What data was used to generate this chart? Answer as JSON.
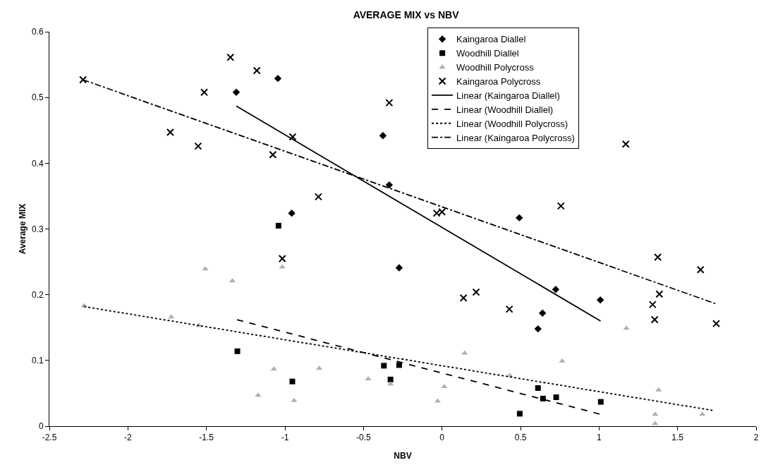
{
  "chart_data": {
    "type": "scatter",
    "title": "AVERAGE MIX vs NBV",
    "xlabel": "NBV",
    "ylabel": "Average MIX",
    "xlim": [
      -2.5,
      2
    ],
    "xticks": [
      -2.5,
      -2,
      -1.5,
      -1,
      -0.5,
      0,
      0.5,
      1,
      1.5,
      2
    ],
    "ylim": [
      0,
      0.6
    ],
    "yticks": [
      0,
      0.1,
      0.2,
      0.3,
      0.4,
      0.5,
      0.6
    ],
    "grid": false,
    "legend": "top",
    "series": [
      {
        "name": "Kaingaroa Diallel",
        "marker": "diamond",
        "color": "#000000",
        "x": [
          -1.31,
          -1.045,
          -0.376,
          -0.336,
          -0.957,
          -0.273,
          0.724,
          1.008,
          0.64,
          0.611,
          0.492
        ],
        "values": [
          0.508,
          0.529,
          0.442,
          0.367,
          0.324,
          0.241,
          0.208,
          0.192,
          0.172,
          0.148,
          0.317
        ]
      },
      {
        "name": "Woodhill Diallel",
        "marker": "square",
        "color": "#000000",
        "x": [
          -1.041,
          -1.303,
          -0.953,
          -0.37,
          -0.273,
          -0.328,
          0.611,
          0.643,
          0.727,
          1.011,
          0.495
        ],
        "values": [
          0.305,
          0.114,
          0.068,
          0.092,
          0.093,
          0.071,
          0.058,
          0.042,
          0.044,
          0.037,
          0.019
        ]
      },
      {
        "name": "Woodhill Polycross",
        "marker": "triangle",
        "color": "#b0b0b0",
        "x": [
          -2.279,
          -1.507,
          -1.335,
          -1.017,
          -1.724,
          -1.547,
          -1.071,
          -0.782,
          -1.171,
          -0.942,
          -0.328,
          -0.47,
          0.144,
          0.014,
          -0.028,
          0.433,
          0.765,
          1.174,
          1.379,
          1.357,
          1.657,
          1.357
        ],
        "values": [
          0.183,
          0.239,
          0.221,
          0.242,
          0.166,
          0.153,
          0.087,
          0.088,
          0.047,
          0.039,
          0.064,
          0.072,
          0.111,
          0.06,
          0.038,
          0.077,
          0.099,
          0.149,
          0.055,
          0.018,
          0.018,
          0.004
        ]
      },
      {
        "name": "Kaingaroa Polycross",
        "marker": "cross",
        "color": "#000000",
        "x": [
          -2.286,
          -1.347,
          -1.179,
          -1.514,
          -1.73,
          -1.553,
          -0.951,
          -1.077,
          -0.336,
          -0.787,
          -1.017,
          -0.034,
          0,
          0.757,
          1.17,
          0.137,
          0.217,
          0.429,
          1.374,
          1.646,
          1.384,
          1.341,
          1.354,
          1.746
        ],
        "values": [
          0.527,
          0.561,
          0.541,
          0.508,
          0.447,
          0.426,
          0.44,
          0.413,
          0.492,
          0.349,
          0.255,
          0.324,
          0.326,
          0.335,
          0.429,
          0.195,
          0.204,
          0.178,
          0.257,
          0.238,
          0.201,
          0.185,
          0.162,
          0.156
        ]
      },
      {
        "name": "Linear (Kaingaroa Diallel)",
        "type": "line",
        "marker": "none",
        "line_style": "solid",
        "color": "#000000",
        "x": [
          -1.31,
          1.01
        ],
        "values": [
          0.487,
          0.16
        ]
      },
      {
        "name": "Linear (Woodhill Diallel)",
        "type": "line",
        "marker": "none",
        "line_style": "dashed",
        "color": "#000000",
        "x": [
          -1.305,
          1.011
        ],
        "values": [
          0.162,
          0.018
        ]
      },
      {
        "name": "Linear (Woodhill Polycross)",
        "type": "line",
        "marker": "none",
        "line_style": "dotted",
        "color": "#000000",
        "x": [
          -2.279,
          1.723
        ],
        "values": [
          0.182,
          0.024
        ]
      },
      {
        "name": "Linear (Kaingaroa Polycross)",
        "type": "line",
        "marker": "none",
        "line_style": "dashdot",
        "color": "#000000",
        "x": [
          -2.286,
          1.746
        ],
        "values": [
          0.527,
          0.186
        ]
      }
    ]
  }
}
